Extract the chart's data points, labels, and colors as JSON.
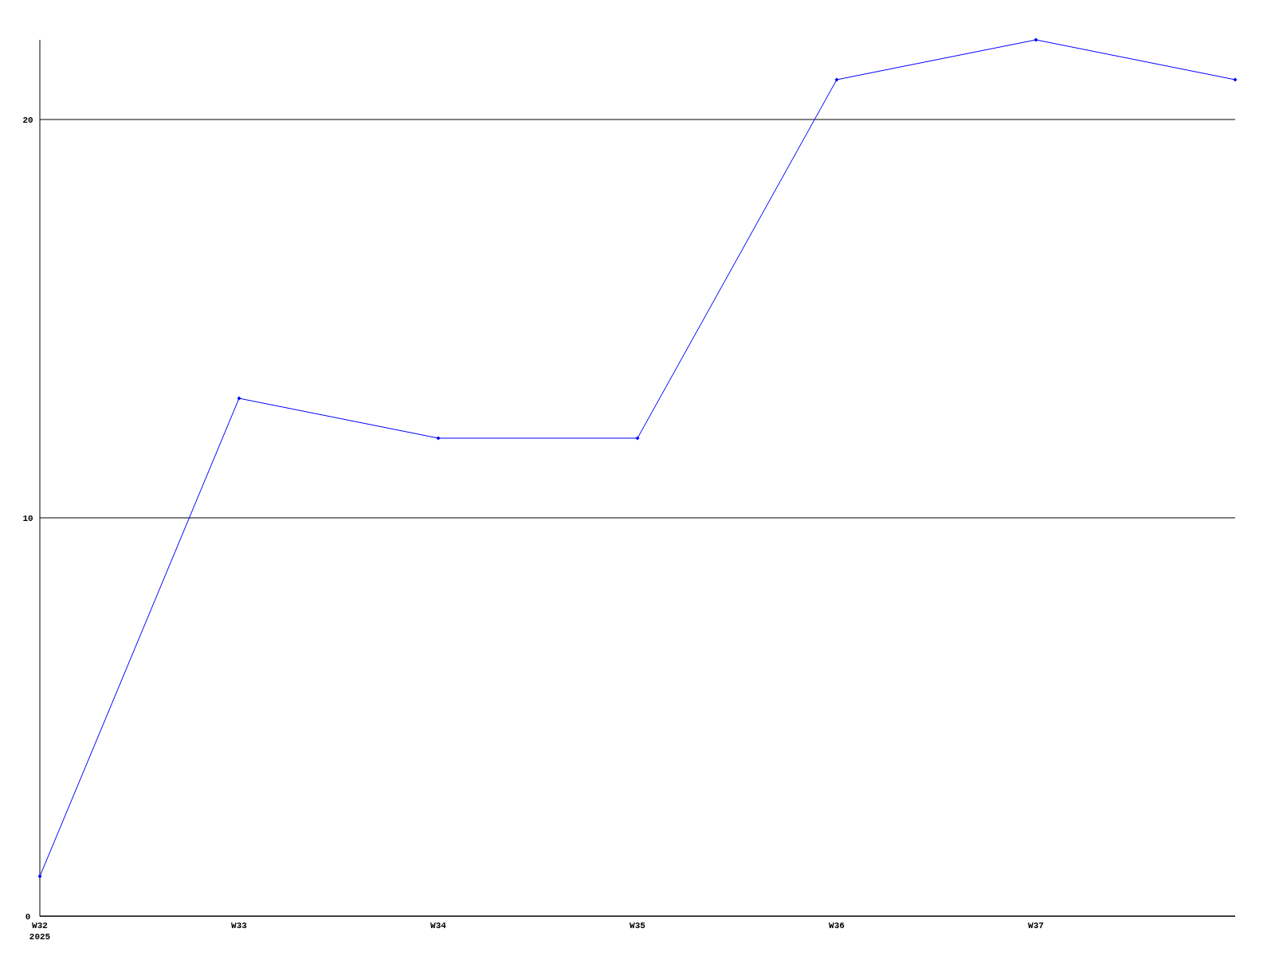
{
  "chart_data": {
    "type": "line",
    "categories": [
      "W32\n2025",
      "W33",
      "W34",
      "W35",
      "W36",
      "W37",
      null
    ],
    "series": [
      {
        "color": "#0000ff",
        "values": [
          1,
          13,
          12,
          12,
          21,
          22,
          21
        ]
      }
    ],
    "ylim": [
      0,
      22
    ],
    "yticks": [
      0,
      10,
      20
    ],
    "grid": "y",
    "marker": "diamond",
    "line_style": "solid"
  }
}
